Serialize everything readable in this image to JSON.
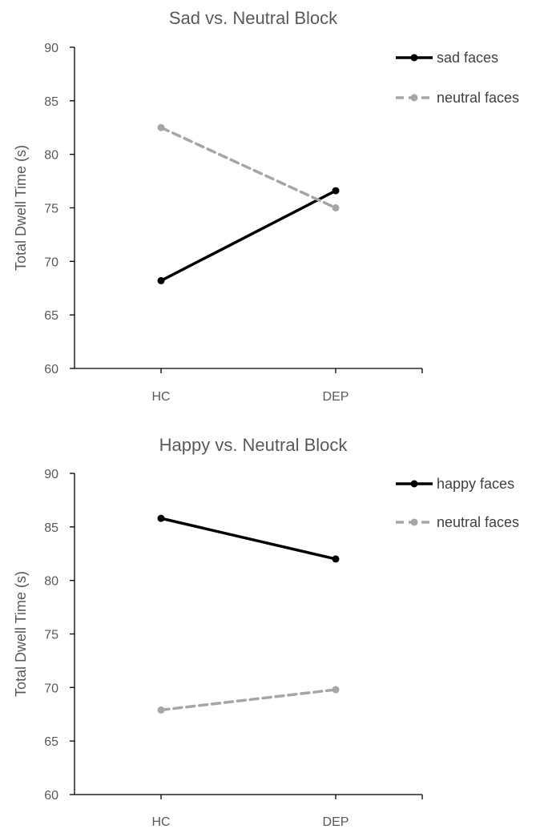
{
  "chart_data": [
    {
      "type": "line",
      "title": "Sad vs. Neutral Block",
      "xlabel": "",
      "ylabel": "Total Dwell Time (s)",
      "categories": [
        "HC",
        "DEP"
      ],
      "ylim": [
        60,
        90
      ],
      "yticks": [
        60,
        65,
        70,
        75,
        80,
        85,
        90
      ],
      "grid": false,
      "legend_position": "top-right",
      "series": [
        {
          "name": "sad faces",
          "values": [
            68.2,
            76.6
          ],
          "color": "#000000",
          "dashed": false
        },
        {
          "name": "neutral faces",
          "values": [
            82.5,
            75.0
          ],
          "color": "#a6a6a6",
          "dashed": true
        }
      ]
    },
    {
      "type": "line",
      "title": "Happy vs. Neutral Block",
      "xlabel": "",
      "ylabel": "Total Dwell Time (s)",
      "categories": [
        "HC",
        "DEP"
      ],
      "ylim": [
        60,
        90
      ],
      "yticks": [
        60,
        65,
        70,
        75,
        80,
        85,
        90
      ],
      "grid": false,
      "legend_position": "top-right",
      "series": [
        {
          "name": "happy faces",
          "values": [
            85.8,
            82.0
          ],
          "color": "#000000",
          "dashed": false
        },
        {
          "name": "neutral faces",
          "values": [
            67.9,
            69.8
          ],
          "color": "#a6a6a6",
          "dashed": true
        }
      ]
    }
  ]
}
